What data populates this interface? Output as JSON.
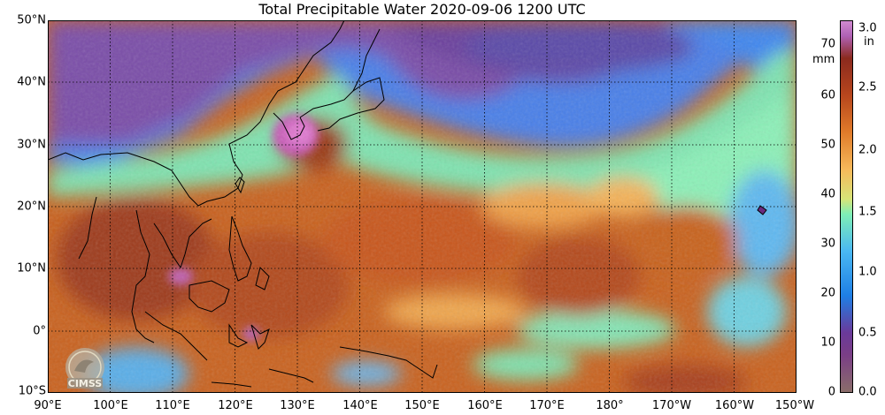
{
  "title": "Total Precipitable Water  2020-09-06 1200 UTC",
  "lat_labels": [
    "50°N",
    "40°N",
    "30°N",
    "20°N",
    "10°N",
    "0°",
    "10°S"
  ],
  "lon_labels": [
    "90°E",
    "100°E",
    "110°E",
    "120°E",
    "130°E",
    "140°E",
    "150°E",
    "160°E",
    "170°E",
    "180°",
    "170°W",
    "160°W",
    "150°W"
  ],
  "colorbar": {
    "mm_ticks": [
      "70",
      "60",
      "50",
      "40",
      "30",
      "20",
      "10",
      "0"
    ],
    "in_ticks": [
      "3.0",
      "2.5",
      "2.0",
      "1.5",
      "1.0",
      "0.5",
      "0.0"
    ],
    "mm_unit": "mm",
    "in_unit": "in",
    "colors": [
      "#8a6d6a",
      "#6a3a9a",
      "#1e7fe6",
      "#4ab8f2",
      "#7fefb6",
      "#f6b95a",
      "#e07b2a",
      "#b7461d",
      "#8b2a1e",
      "#d08ad0"
    ]
  },
  "logo_text": "CIMSS"
}
